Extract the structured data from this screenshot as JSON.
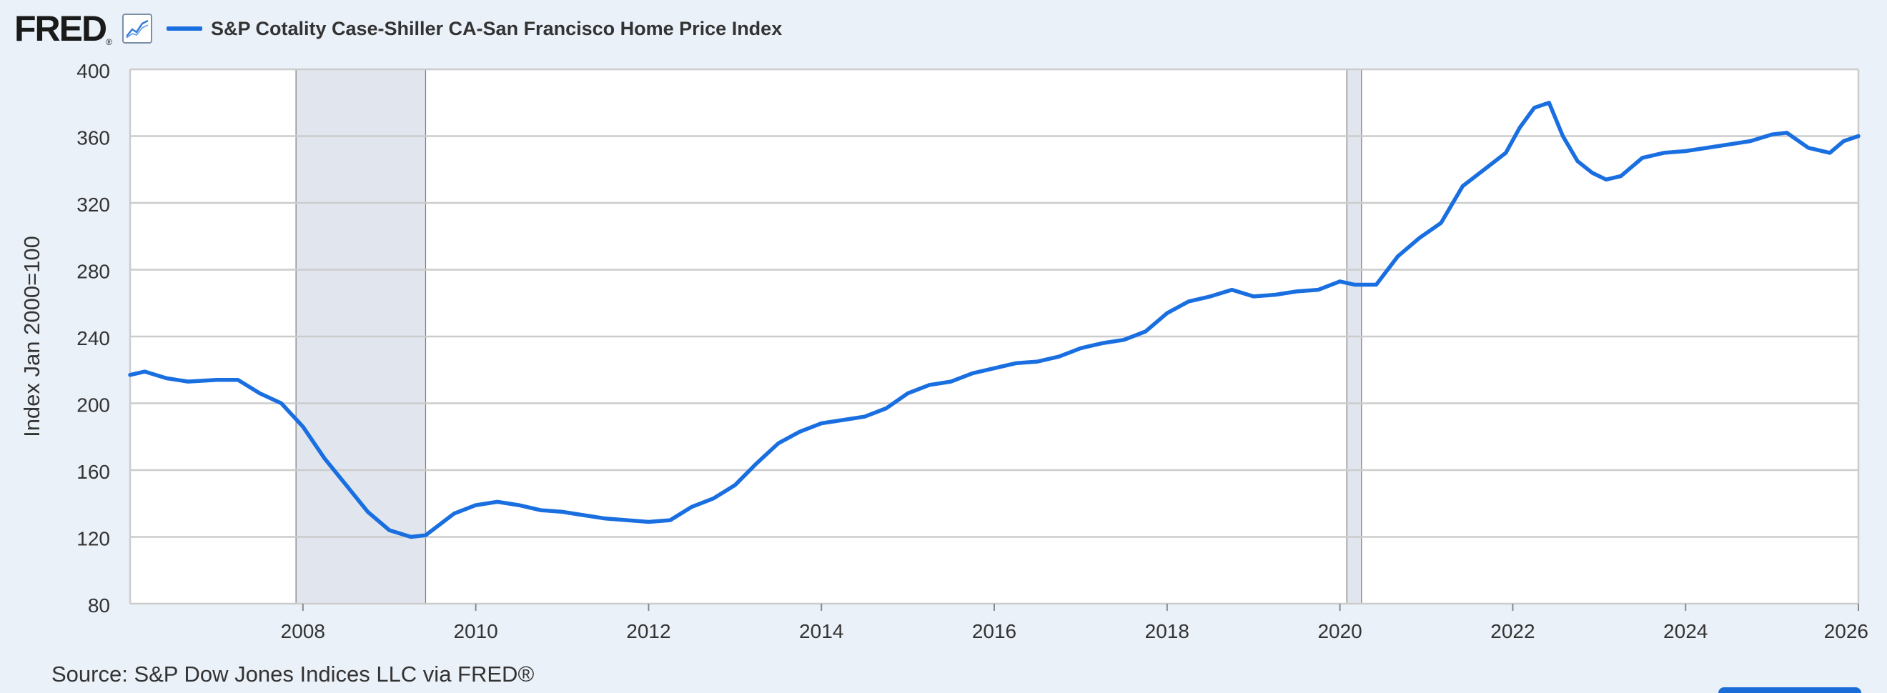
{
  "header": {
    "logo_text": "FRED",
    "logo_mark": "®",
    "chart_icon": "line-chart-icon",
    "series_title": "S&P Cotality Case-Shiller CA-San Francisco Home Price Index"
  },
  "footer": {
    "source": "Source: S&P Dow Jones Indices LLC via FRED®"
  },
  "colors": {
    "series": "#1a6fe0",
    "recession": "#e1e6ee",
    "background": "#ebf1f9",
    "plot_background": "#ffffff",
    "grid": "#cccccc",
    "text": "#333333"
  },
  "chart_data": {
    "type": "line",
    "title": "S&P Cotality Case-Shiller CA-San Francisco Home Price Index",
    "xlabel": "",
    "ylabel": "Index Jan 2000=100",
    "ylim": [
      80,
      400
    ],
    "xlim": [
      2006.0,
      2026.0
    ],
    "yticks": [
      80,
      120,
      160,
      200,
      240,
      280,
      320,
      360,
      400
    ],
    "xticks": [
      2008,
      2010,
      2012,
      2014,
      2016,
      2018,
      2020,
      2022,
      2024,
      2026
    ],
    "grid": true,
    "recessions": [
      {
        "start": 2007.92,
        "end": 2009.42
      },
      {
        "start": 2020.08,
        "end": 2020.25
      }
    ],
    "series": [
      {
        "name": "S&P Cotality Case-Shiller CA-San Francisco Home Price Index",
        "x": [
          2006.0,
          2006.17,
          2006.42,
          2006.67,
          2007.0,
          2007.25,
          2007.5,
          2007.75,
          2008.0,
          2008.25,
          2008.5,
          2008.75,
          2009.0,
          2009.25,
          2009.42,
          2009.75,
          2010.0,
          2010.25,
          2010.5,
          2010.75,
          2011.0,
          2011.25,
          2011.5,
          2011.75,
          2012.0,
          2012.25,
          2012.5,
          2012.75,
          2013.0,
          2013.25,
          2013.5,
          2013.75,
          2014.0,
          2014.25,
          2014.5,
          2014.75,
          2015.0,
          2015.25,
          2015.5,
          2015.75,
          2016.0,
          2016.25,
          2016.5,
          2016.75,
          2017.0,
          2017.25,
          2017.5,
          2017.75,
          2018.0,
          2018.25,
          2018.5,
          2018.75,
          2019.0,
          2019.25,
          2019.5,
          2019.75,
          2020.0,
          2020.17,
          2020.42,
          2020.67,
          2020.92,
          2021.17,
          2021.42,
          2021.67,
          2021.92,
          2022.08,
          2022.25,
          2022.42,
          2022.58,
          2022.75,
          2022.92,
          2023.08,
          2023.25,
          2023.5,
          2023.75,
          2024.0,
          2024.25,
          2024.5,
          2024.75,
          2025.0,
          2025.17,
          2025.42,
          2025.67,
          2025.83,
          2026.0
        ],
        "y": [
          217,
          219,
          215,
          213,
          214,
          214,
          206,
          200,
          186,
          167,
          151,
          135,
          124,
          120,
          121,
          134,
          139,
          141,
          139,
          136,
          135,
          133,
          131,
          130,
          129,
          130,
          138,
          143,
          151,
          164,
          176,
          183,
          188,
          190,
          192,
          197,
          206,
          211,
          213,
          218,
          221,
          224,
          225,
          228,
          233,
          236,
          238,
          243,
          254,
          261,
          264,
          268,
          264,
          265,
          267,
          268,
          273,
          271,
          271,
          288,
          299,
          308,
          330,
          340,
          350,
          365,
          377,
          380,
          360,
          345,
          338,
          334,
          336,
          347,
          350,
          351,
          353,
          355,
          357,
          361,
          362,
          353,
          350,
          357,
          360
        ]
      }
    ]
  }
}
